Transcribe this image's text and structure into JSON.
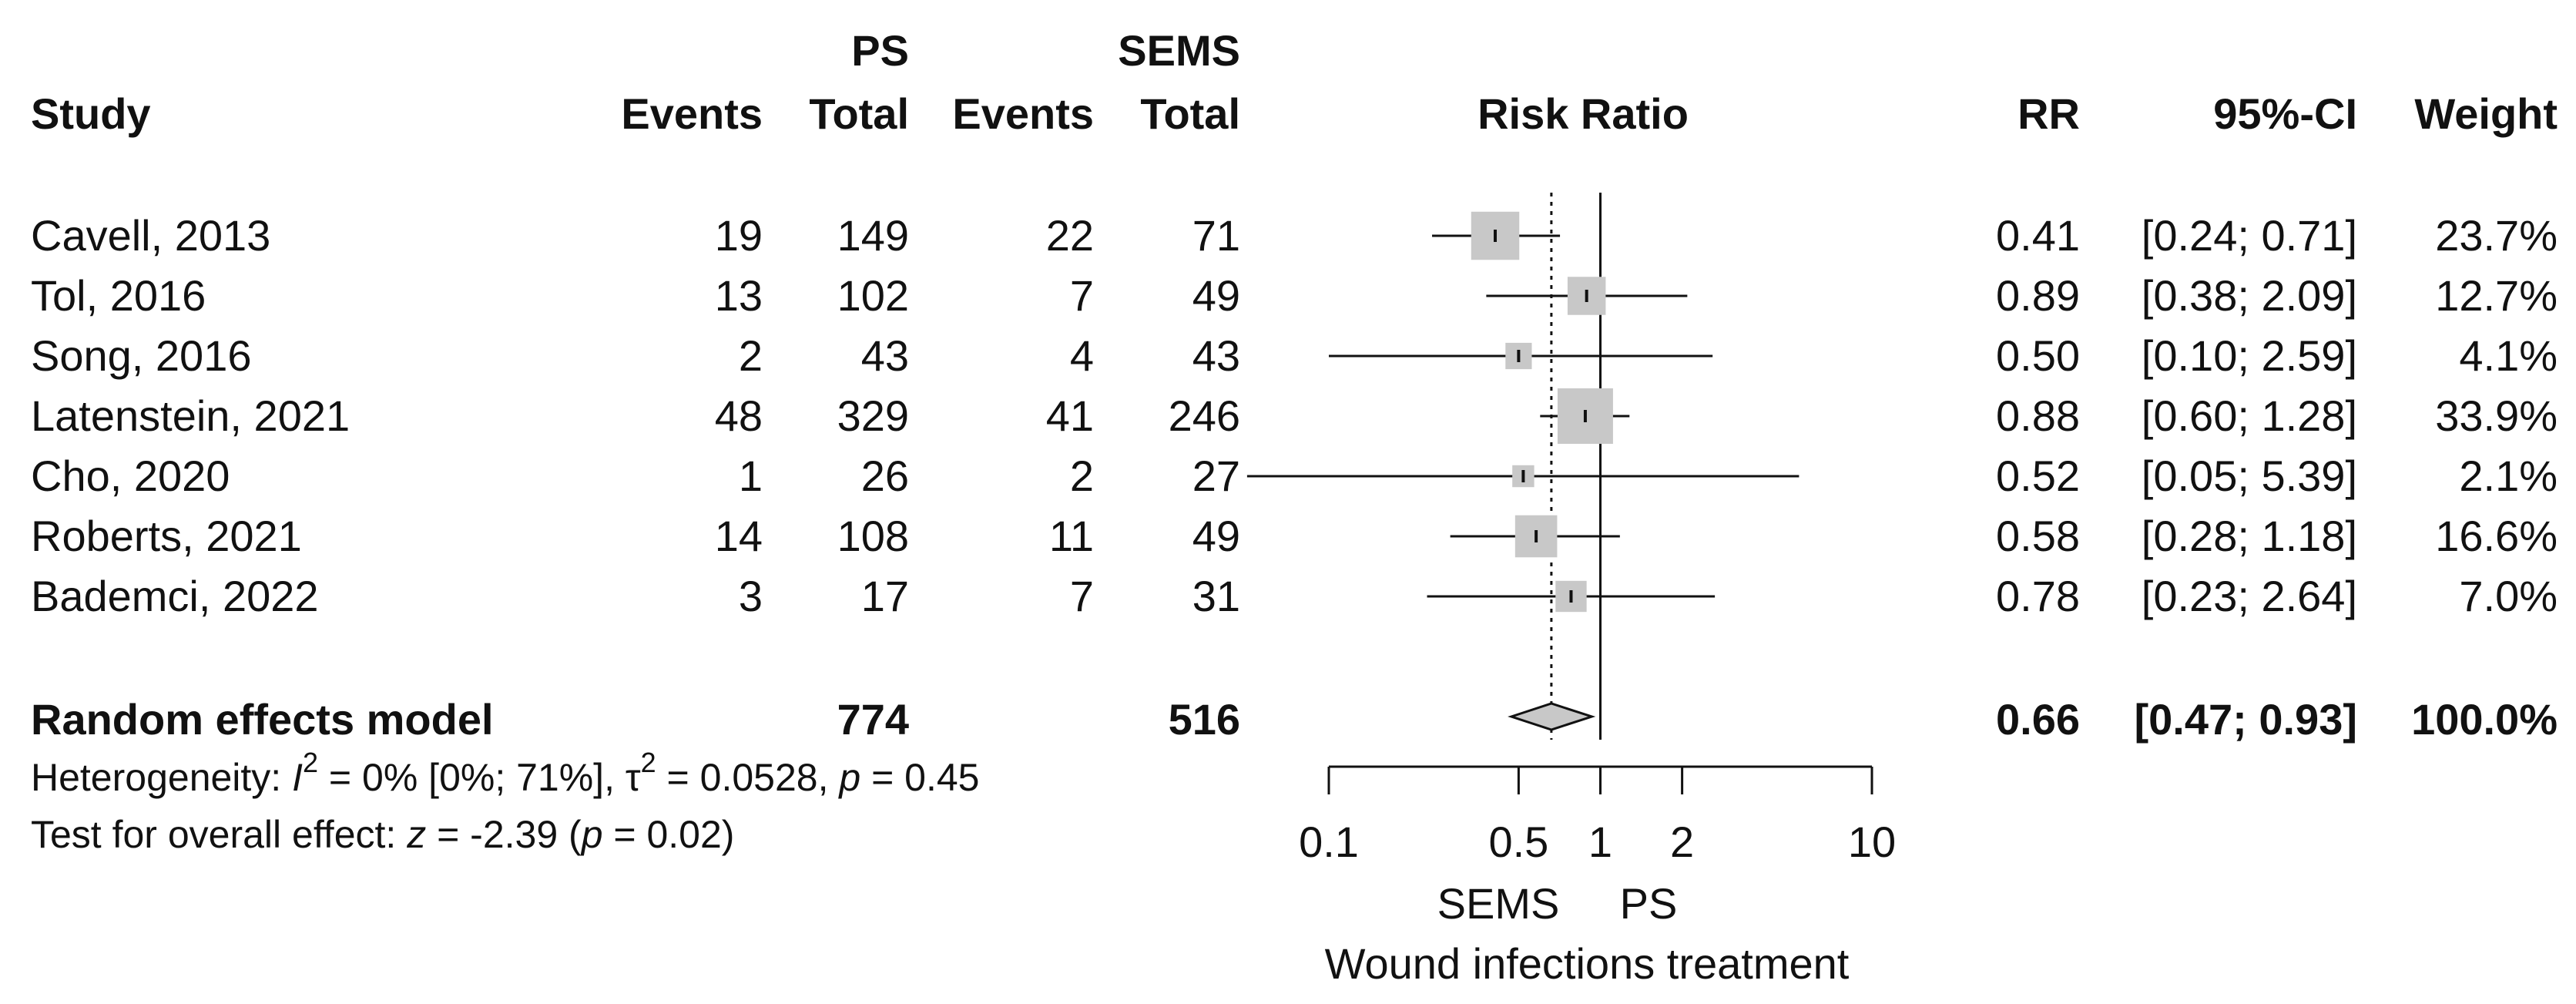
{
  "headers": {
    "study": "Study",
    "ps_group": "PS",
    "sems_group": "SEMS",
    "events": "Events",
    "total": "Total",
    "risk_ratio": "Risk Ratio",
    "rr": "RR",
    "ci": "95%-CI",
    "weight": "Weight"
  },
  "studies": [
    {
      "study": "Cavell, 2013",
      "ps_events": "19",
      "ps_total": "149",
      "sems_events": "22",
      "sems_total": "71",
      "rr": "0.41",
      "ci": "[0.24; 0.71]",
      "weight": "23.7%"
    },
    {
      "study": "Tol, 2016",
      "ps_events": "13",
      "ps_total": "102",
      "sems_events": "7",
      "sems_total": "49",
      "rr": "0.89",
      "ci": "[0.38; 2.09]",
      "weight": "12.7%"
    },
    {
      "study": "Song, 2016",
      "ps_events": "2",
      "ps_total": "43",
      "sems_events": "4",
      "sems_total": "43",
      "rr": "0.50",
      "ci": "[0.10; 2.59]",
      "weight": "4.1%"
    },
    {
      "study": "Latenstein, 2021",
      "ps_events": "48",
      "ps_total": "329",
      "sems_events": "41",
      "sems_total": "246",
      "rr": "0.88",
      "ci": "[0.60; 1.28]",
      "weight": "33.9%"
    },
    {
      "study": "Cho, 2020",
      "ps_events": "1",
      "ps_total": "26",
      "sems_events": "2",
      "sems_total": "27",
      "rr": "0.52",
      "ci": "[0.05; 5.39]",
      "weight": "2.1%"
    },
    {
      "study": "Roberts, 2021",
      "ps_events": "14",
      "ps_total": "108",
      "sems_events": "11",
      "sems_total": "49",
      "rr": "0.58",
      "ci": "[0.28; 1.18]",
      "weight": "16.6%"
    },
    {
      "study": "Bademci, 2022",
      "ps_events": "3",
      "ps_total": "17",
      "sems_events": "7",
      "sems_total": "31",
      "rr": "0.78",
      "ci": "[0.23; 2.64]",
      "weight": "7.0%"
    }
  ],
  "summary": {
    "label": "Random effects model",
    "ps_total": "774",
    "sems_total": "516",
    "rr": "0.66",
    "ci": "[0.47; 0.93]",
    "weight": "100.0%"
  },
  "heterogeneity": {
    "prefix": "Heterogeneity: ",
    "i2_symbol": "I",
    "i2_sup": "2",
    "i2_value": " = 0% [0%; 71%], ",
    "tau_symbol": "τ",
    "tau_sup": "2",
    "tau_value": " = 0.0528, ",
    "p_symbol": "p",
    "p_value": " = 0.45"
  },
  "overall_effect": {
    "prefix": "Test for overall effect: ",
    "z_symbol": "z",
    "z_value": " = -2.39 (",
    "p_symbol": "p",
    "p_value": " = 0.02)"
  },
  "chart_data": {
    "type": "forest",
    "title": "Risk Ratio",
    "xlabel": "Wound infections treatment",
    "scale": "log",
    "xlim": [
      0.1,
      10
    ],
    "ticks": [
      0.1,
      0.5,
      1,
      2,
      10
    ],
    "tick_labels": [
      "0.1",
      "0.5",
      "1",
      "2",
      "10"
    ],
    "favours_left": "SEMS",
    "favours_right": "PS",
    "null_value": 1,
    "pooled_reference": 0.66,
    "points": [
      {
        "study": "Cavell, 2013",
        "rr": 0.41,
        "lower": 0.24,
        "upper": 0.71,
        "weight": 23.7
      },
      {
        "study": "Tol, 2016",
        "rr": 0.89,
        "lower": 0.38,
        "upper": 2.09,
        "weight": 12.7
      },
      {
        "study": "Song, 2016",
        "rr": 0.5,
        "lower": 0.1,
        "upper": 2.59,
        "weight": 4.1
      },
      {
        "study": "Latenstein, 2021",
        "rr": 0.88,
        "lower": 0.6,
        "upper": 1.28,
        "weight": 33.9
      },
      {
        "study": "Cho, 2020",
        "rr": 0.52,
        "lower": 0.05,
        "upper": 5.39,
        "weight": 2.1
      },
      {
        "study": "Roberts, 2021",
        "rr": 0.58,
        "lower": 0.28,
        "upper": 1.18,
        "weight": 16.6
      },
      {
        "study": "Bademci, 2022",
        "rr": 0.78,
        "lower": 0.23,
        "upper": 2.64,
        "weight": 7.0
      }
    ],
    "pooled": {
      "rr": 0.66,
      "lower": 0.47,
      "upper": 0.93
    },
    "colors": {
      "box": "#c8c8c8",
      "line": "#111111",
      "diamond": "#c8c8c8"
    }
  }
}
